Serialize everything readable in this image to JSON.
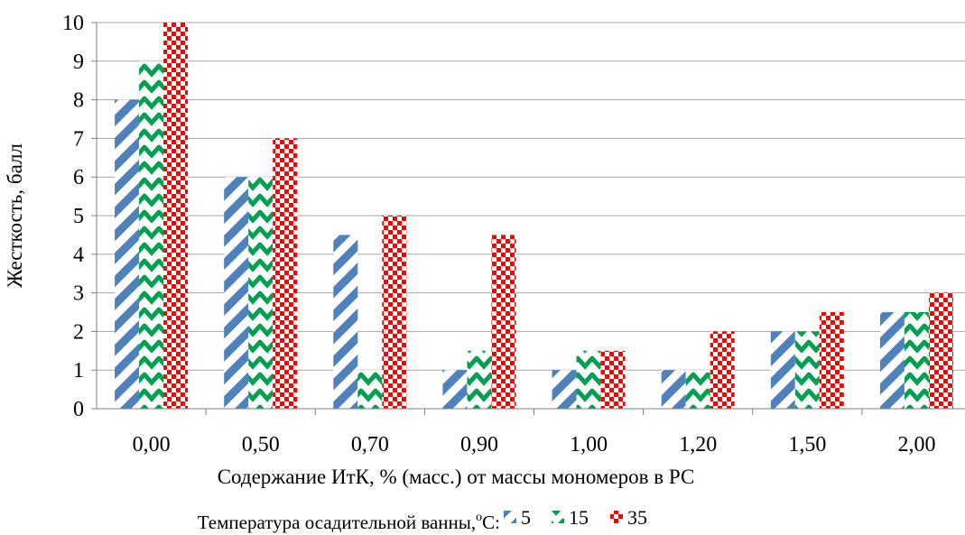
{
  "chart_data": {
    "type": "bar",
    "categories": [
      "0,00",
      "0,50",
      "0,70",
      "0,90",
      "1,00",
      "1,20",
      "1,50",
      "2,00"
    ],
    "series": [
      {
        "name": "5",
        "values": [
          8,
          6,
          4.5,
          1,
          1,
          1,
          2,
          2.5
        ],
        "color": "#4f81bd",
        "pattern": "diagonal-stripes"
      },
      {
        "name": "15",
        "values": [
          9,
          6,
          1,
          1.5,
          1.5,
          1,
          2,
          2.5
        ],
        "color": "#00a050",
        "pattern": "zigzag"
      },
      {
        "name": "35",
        "values": [
          10,
          7,
          5,
          4.5,
          1.5,
          2,
          2.5,
          3
        ],
        "color": "#ff0000",
        "pattern": "checkerboard"
      }
    ],
    "xlabel": "Содержание ИтК, % (масс.) от массы мономеров в РС",
    "ylabel": "Жесткость, балл",
    "ylim": [
      0,
      10
    ],
    "yticks": [
      "0",
      "1",
      "2",
      "3",
      "4",
      "5",
      "6",
      "7",
      "8",
      "9",
      "10"
    ],
    "grid": true,
    "legend": {
      "title_main": "Температура осадительной ванны,",
      "title_sup": "o",
      "title_unit": "C:",
      "position": "bottom"
    }
  }
}
